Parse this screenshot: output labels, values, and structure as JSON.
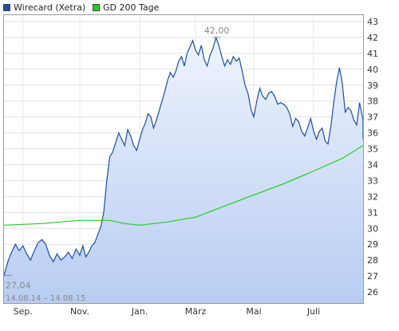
{
  "chart_data": {
    "type": "line",
    "date_range": "14.08.14 – 14.08.15",
    "x_ticks": [
      "Sep.",
      "Nov.",
      "Jan.",
      "März",
      "Mai",
      "Juli"
    ],
    "y_ticks": [
      "26",
      "27",
      "28",
      "29",
      "30",
      "31",
      "32",
      "33",
      "34",
      "35",
      "36",
      "37",
      "38",
      "39",
      "40",
      "41",
      "42",
      "43"
    ],
    "ylim": [
      25.3,
      43.4
    ],
    "grid": true,
    "legend_position": "top-left",
    "annotations": {
      "max": {
        "label": "42,00",
        "month_index": 6.73,
        "value": 42.0
      },
      "min": {
        "label": "27,04",
        "month_index": 0.02,
        "value": 27.04
      }
    },
    "series": [
      {
        "name": "Wirecard (Xetra)",
        "color": "#1f4f9f",
        "month_index": [
          0,
          0.1,
          0.2,
          0.3,
          0.4,
          0.5,
          0.6,
          0.7,
          0.8,
          0.9,
          1.0,
          1.1,
          1.2,
          1.3,
          1.4,
          1.5,
          1.6,
          1.7,
          1.8,
          1.9,
          2.0,
          2.1,
          2.2,
          2.3,
          2.4,
          2.5,
          2.6,
          2.7,
          2.8,
          2.9,
          3.0,
          3.1,
          3.2,
          3.3,
          3.4,
          3.5,
          3.6,
          3.7,
          3.8,
          3.9,
          4.0,
          4.1,
          4.2,
          4.3,
          4.4,
          4.5,
          4.6,
          4.7,
          4.8,
          4.9,
          5.0,
          5.1,
          5.2,
          5.3,
          5.4,
          5.5,
          5.6,
          5.7,
          5.8,
          5.9,
          6.0,
          6.1,
          6.2,
          6.3,
          6.4,
          6.5,
          6.6,
          6.7,
          6.8,
          6.9,
          7.0,
          7.1,
          7.2,
          7.3,
          7.4,
          7.5,
          7.6,
          7.7,
          7.8,
          7.9,
          8.0,
          8.1,
          8.2,
          8.3,
          8.4,
          8.5,
          8.6,
          8.7,
          8.8,
          8.9,
          9.0,
          9.1,
          9.2,
          9.3,
          9.4,
          9.5,
          9.6,
          9.7,
          9.8,
          9.9,
          10.0,
          10.1,
          10.2,
          10.3,
          10.4,
          10.5,
          10.6,
          10.7,
          10.8,
          10.9,
          11.0,
          11.1,
          11.2,
          11.3,
          11.4,
          11.5,
          11.6,
          11.7,
          11.8,
          11.9,
          12.0
        ],
        "values": [
          27.04,
          27.9,
          28.5,
          29.0,
          28.6,
          28.9,
          28.4,
          28.0,
          28.6,
          29.1,
          29.3,
          29.0,
          28.3,
          27.9,
          28.4,
          28.0,
          28.2,
          28.5,
          28.1,
          28.7,
          28.3,
          28.9,
          28.2,
          28.5,
          28.9,
          29.1,
          29.6,
          30.1,
          31.0,
          33.0,
          34.5,
          34.8,
          35.4,
          36.0,
          35.6,
          35.2,
          36.2,
          35.8,
          35.2,
          34.9,
          35.6,
          36.2,
          36.6,
          37.2,
          37.0,
          36.3,
          36.8,
          37.4,
          38.0,
          38.6,
          39.3,
          39.8,
          39.5,
          39.9,
          40.5,
          40.8,
          40.2,
          41.0,
          41.4,
          41.8,
          41.2,
          40.9,
          41.5,
          40.6,
          40.2,
          40.9,
          41.3,
          42.0,
          41.5,
          40.8,
          40.2,
          40.6,
          40.3,
          40.8,
          40.5,
          40.7,
          39.9,
          39.0,
          38.5,
          37.5,
          37.0,
          38.0,
          38.8,
          38.3,
          38.1,
          38.5,
          38.6,
          38.3,
          37.8,
          37.9,
          37.8,
          37.6,
          37.2,
          36.4,
          36.9,
          36.7,
          36.1,
          35.8,
          36.3,
          36.9,
          36.1,
          35.6,
          36.1,
          36.3,
          35.5,
          35.3,
          36.4,
          37.9,
          39.2,
          40.1,
          39.1,
          37.3,
          37.6,
          37.4,
          36.8,
          36.5,
          37.9,
          37.0,
          36.8,
          35.6,
          36.0
        ],
        "area_fill": true
      },
      {
        "name": "GD 200 Tage",
        "color": "#22cc22",
        "month_index": [
          0,
          1,
          2,
          3,
          3.5,
          4,
          4.5,
          5,
          6,
          7,
          8,
          9,
          10,
          11,
          12
        ],
        "values": [
          30.2,
          30.3,
          30.5,
          30.5,
          30.3,
          30.2,
          30.3,
          30.4,
          30.7,
          31.4,
          32.1,
          32.8,
          33.6,
          34.4,
          35.2
        ],
        "area_fill": false
      }
    ]
  }
}
